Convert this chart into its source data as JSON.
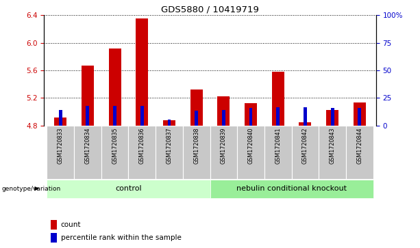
{
  "title": "GDS5880 / 10419719",
  "samples": [
    "GSM1720833",
    "GSM1720834",
    "GSM1720835",
    "GSM1720836",
    "GSM1720837",
    "GSM1720838",
    "GSM1720839",
    "GSM1720840",
    "GSM1720841",
    "GSM1720842",
    "GSM1720843",
    "GSM1720844"
  ],
  "count_values": [
    4.92,
    5.67,
    5.92,
    6.35,
    4.88,
    5.32,
    5.22,
    5.12,
    5.58,
    4.85,
    5.02,
    5.13
  ],
  "percentile_values": [
    5.02,
    5.08,
    5.08,
    5.08,
    4.89,
    5.01,
    5.02,
    5.05,
    5.06,
    5.06,
    5.05,
    5.05
  ],
  "ylim_left": [
    4.8,
    6.4
  ],
  "ylim_right": [
    0,
    100
  ],
  "right_ticks": [
    0,
    25,
    50,
    75,
    100
  ],
  "right_tick_labels": [
    "0",
    "25",
    "50",
    "75",
    "100%"
  ],
  "left_ticks": [
    4.8,
    5.2,
    5.6,
    6.0,
    6.4
  ],
  "bar_bottom": 4.8,
  "count_color": "#cc0000",
  "percentile_color": "#0000cc",
  "background_color": "#ffffff",
  "control_group_count": 6,
  "knockout_group_count": 6,
  "control_label": "control",
  "knockout_label": "nebulin conditional knockout",
  "genotype_label": "genotype/variation",
  "legend_count": "count",
  "legend_percentile": "percentile rank within the sample",
  "control_bg": "#ccffcc",
  "knockout_bg": "#99ee99",
  "xticklabel_bg": "#c8c8c8",
  "grid_color": "#000000",
  "red_bar_width": 0.45,
  "blue_bar_width": 0.12
}
